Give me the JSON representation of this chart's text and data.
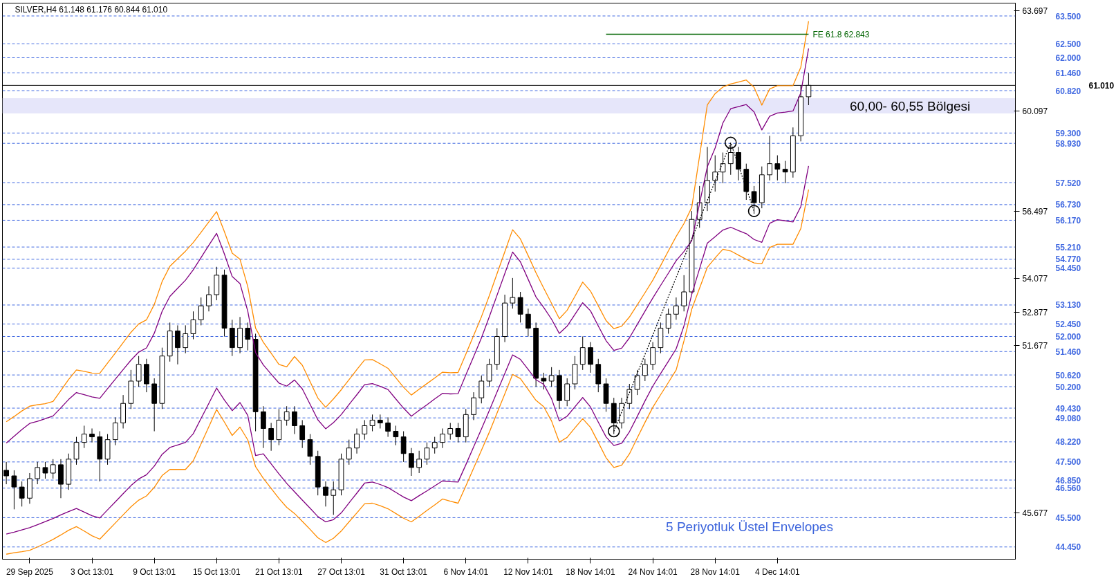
{
  "chart_data": {
    "type": "candlestick",
    "title": "SILVER,H4  61.148 61.176 60.844 61.010",
    "color": "#000000",
    "categories": [
      null,
      null,
      null,
      "29 Sep 2025",
      null,
      null,
      null,
      null,
      null,
      null,
      null,
      "3 Oct 13:01",
      null,
      null,
      null,
      null,
      null,
      null,
      null,
      "9 Oct 13:01",
      null,
      null,
      null,
      null,
      null,
      null,
      null,
      "15 Oct 13:01",
      null,
      null,
      null,
      null,
      null,
      null,
      null,
      "21 Oct 13:01",
      null,
      null,
      null,
      null,
      null,
      null,
      null,
      "27 Oct 13:01",
      null,
      null,
      null,
      null,
      null,
      null,
      null,
      "31 Oct 13:01",
      null,
      null,
      null,
      null,
      null,
      null,
      null,
      "6 Nov 14:01",
      null,
      null,
      null,
      null,
      null,
      null,
      null,
      "12 Nov 14:01",
      null,
      null,
      null,
      null,
      null,
      null,
      null,
      "18 Nov 14:01",
      null,
      null,
      null,
      null,
      null,
      null,
      null,
      "24 Nov 14:01",
      null,
      null,
      null,
      null,
      null,
      null,
      null,
      "28 Nov 14:01",
      null,
      null,
      null,
      null,
      null,
      null,
      null,
      "4 Dec 14:01",
      null,
      null,
      null,
      null
    ],
    "ohlc": [
      [
        47.2,
        47.5,
        46.7,
        47.0
      ],
      [
        47.0,
        47.2,
        45.8,
        46.6
      ],
      [
        46.6,
        46.8,
        45.9,
        46.2
      ],
      [
        46.2,
        47.1,
        46.0,
        46.9
      ],
      [
        46.9,
        47.5,
        46.7,
        47.3
      ],
      [
        47.3,
        47.5,
        46.9,
        47.1
      ],
      [
        47.1,
        47.6,
        46.9,
        47.4
      ],
      [
        47.4,
        47.6,
        46.2,
        46.7
      ],
      [
        46.7,
        47.8,
        46.5,
        47.6
      ],
      [
        47.6,
        48.4,
        47.4,
        48.2
      ],
      [
        48.2,
        48.8,
        48.0,
        48.5
      ],
      [
        48.5,
        48.7,
        48.2,
        48.4
      ],
      [
        48.4,
        48.6,
        46.8,
        47.6
      ],
      [
        47.6,
        48.5,
        47.4,
        48.3
      ],
      [
        48.3,
        49.1,
        48.1,
        48.9
      ],
      [
        48.9,
        49.9,
        48.7,
        49.6
      ],
      [
        49.6,
        50.8,
        49.4,
        50.4
      ],
      [
        50.4,
        51.3,
        50.2,
        51.0
      ],
      [
        51.0,
        51.2,
        50.0,
        50.3
      ],
      [
        50.3,
        50.5,
        48.6,
        49.6
      ],
      [
        49.6,
        51.6,
        49.4,
        51.3
      ],
      [
        51.3,
        52.5,
        51.1,
        52.2
      ],
      [
        52.2,
        52.4,
        51.0,
        51.6
      ],
      [
        51.6,
        52.4,
        51.4,
        52.1
      ],
      [
        52.1,
        52.9,
        51.9,
        52.6
      ],
      [
        52.6,
        53.4,
        52.4,
        53.1
      ],
      [
        53.1,
        53.8,
        52.9,
        53.5
      ],
      [
        53.5,
        54.5,
        53.3,
        54.2
      ],
      [
        54.2,
        54.4,
        52.0,
        52.3
      ],
      [
        52.3,
        52.6,
        51.3,
        51.6
      ],
      [
        51.6,
        52.7,
        51.4,
        52.3
      ],
      [
        52.3,
        52.5,
        51.5,
        51.9
      ],
      [
        51.9,
        52.1,
        48.6,
        49.3
      ],
      [
        49.3,
        49.5,
        48.0,
        48.7
      ],
      [
        48.7,
        48.9,
        47.9,
        48.3
      ],
      [
        48.3,
        49.4,
        48.1,
        49.0
      ],
      [
        49.0,
        49.5,
        48.8,
        49.3
      ],
      [
        49.3,
        49.5,
        48.5,
        48.8
      ],
      [
        48.8,
        49.0,
        48.0,
        48.3
      ],
      [
        48.3,
        48.5,
        47.4,
        47.7
      ],
      [
        47.7,
        47.9,
        46.3,
        46.6
      ],
      [
        46.6,
        46.8,
        45.9,
        46.3
      ],
      [
        46.3,
        46.8,
        45.6,
        46.5
      ],
      [
        46.5,
        47.8,
        46.3,
        47.6
      ],
      [
        47.6,
        48.3,
        47.4,
        48.0
      ],
      [
        48.0,
        48.7,
        47.8,
        48.5
      ],
      [
        48.5,
        49.0,
        48.3,
        48.8
      ],
      [
        48.8,
        49.2,
        48.6,
        49.0
      ],
      [
        49.0,
        49.2,
        48.7,
        48.9
      ],
      [
        48.9,
        49.1,
        48.4,
        48.6
      ],
      [
        48.6,
        48.8,
        48.1,
        48.4
      ],
      [
        48.4,
        48.6,
        47.5,
        47.8
      ],
      [
        47.8,
        48.0,
        47.0,
        47.3
      ],
      [
        47.3,
        47.9,
        47.1,
        47.6
      ],
      [
        47.6,
        48.2,
        47.4,
        48.0
      ],
      [
        48.0,
        48.4,
        47.8,
        48.2
      ],
      [
        48.2,
        48.7,
        48.0,
        48.5
      ],
      [
        48.5,
        48.9,
        48.3,
        48.7
      ],
      [
        48.7,
        48.9,
        48.2,
        48.4
      ],
      [
        48.4,
        49.4,
        48.2,
        49.2
      ],
      [
        49.2,
        50.0,
        49.0,
        49.8
      ],
      [
        49.8,
        50.6,
        49.6,
        50.4
      ],
      [
        50.4,
        51.2,
        50.2,
        51.0
      ],
      [
        51.0,
        52.3,
        50.8,
        52.0
      ],
      [
        52.0,
        53.5,
        51.8,
        53.2
      ],
      [
        53.2,
        54.1,
        53.0,
        53.4
      ],
      [
        53.4,
        53.6,
        52.5,
        52.8
      ],
      [
        52.8,
        53.0,
        52.0,
        52.3
      ],
      [
        52.3,
        52.5,
        50.2,
        50.5
      ],
      [
        50.5,
        50.7,
        50.1,
        50.4
      ],
      [
        50.4,
        50.9,
        50.2,
        50.6
      ],
      [
        50.6,
        50.8,
        49.4,
        49.7
      ],
      [
        49.7,
        50.5,
        49.5,
        50.3
      ],
      [
        50.3,
        51.3,
        50.1,
        51.0
      ],
      [
        51.0,
        52.0,
        50.8,
        51.6
      ],
      [
        51.6,
        51.8,
        50.7,
        51.0
      ],
      [
        51.0,
        51.2,
        50.0,
        50.3
      ],
      [
        50.3,
        50.5,
        49.3,
        49.6
      ],
      [
        49.6,
        49.8,
        48.5,
        48.9
      ],
      [
        48.9,
        49.8,
        48.7,
        49.6
      ],
      [
        49.6,
        50.3,
        49.4,
        50.1
      ],
      [
        50.1,
        50.8,
        49.9,
        50.6
      ],
      [
        50.6,
        51.2,
        50.4,
        51.0
      ],
      [
        51.0,
        51.8,
        50.8,
        51.6
      ],
      [
        51.6,
        52.5,
        51.4,
        52.3
      ],
      [
        52.3,
        53.0,
        52.1,
        52.8
      ],
      [
        52.8,
        53.4,
        52.6,
        53.1
      ],
      [
        53.1,
        54.2,
        52.9,
        53.6
      ],
      [
        53.6,
        56.5,
        53.5,
        56.2
      ],
      [
        56.2,
        57.4,
        55.9,
        56.8
      ],
      [
        56.8,
        58.8,
        56.5,
        57.6
      ],
      [
        57.6,
        58.5,
        57.2,
        57.9
      ],
      [
        57.9,
        58.6,
        57.5,
        58.2
      ],
      [
        58.2,
        58.9,
        57.8,
        58.6
      ],
      [
        58.6,
        58.8,
        57.6,
        58.0
      ],
      [
        58.0,
        58.2,
        56.9,
        57.2
      ],
      [
        57.2,
        57.4,
        56.4,
        56.8
      ],
      [
        56.8,
        58.1,
        56.6,
        57.8
      ],
      [
        57.8,
        59.2,
        57.6,
        58.2
      ],
      [
        58.2,
        58.5,
        57.6,
        58.0
      ],
      [
        58.0,
        58.3,
        57.5,
        57.9
      ],
      [
        57.9,
        59.5,
        57.7,
        59.2
      ],
      [
        59.2,
        61.0,
        59.0,
        60.6
      ],
      [
        60.6,
        61.45,
        60.3,
        61.01
      ]
    ],
    "series": [
      {
        "type": "line",
        "color": "#ff8c00",
        "values": [
          48.94,
          49.13,
          49.33,
          49.5,
          49.55,
          49.59,
          49.67,
          50.06,
          50.46,
          50.8,
          50.75,
          50.69,
          50.68,
          51.05,
          51.41,
          51.78,
          52.15,
          52.45,
          52.6,
          53.15,
          53.97,
          54.52,
          54.79,
          55.06,
          55.37,
          55.74,
          56.11,
          56.48,
          55.76,
          54.99,
          54.77,
          53.79,
          52.3,
          51.79,
          51.4,
          51.0,
          50.91,
          51.28,
          50.97,
          50.38,
          49.79,
          49.46,
          49.76,
          50.09,
          50.45,
          50.81,
          51.16,
          51.17,
          51.02,
          50.86,
          50.52,
          50.18,
          49.9,
          50.11,
          50.31,
          50.51,
          50.72,
          50.7,
          50.71,
          51.37,
          52.04,
          52.71,
          53.46,
          54.25,
          55.04,
          55.83,
          55.5,
          54.9,
          54.29,
          53.73,
          53.19,
          52.64,
          52.94,
          53.44,
          53.95,
          53.63,
          53.1,
          52.57,
          52.28,
          52.37,
          52.7,
          53.13,
          53.57,
          54.02,
          54.54,
          55.07,
          55.59,
          56.05,
          56.63,
          58.47,
          60.31,
          60.71,
          60.95,
          61.06,
          61.13,
          61.2,
          60.94,
          60.3,
          60.88,
          61.0,
          61.0,
          61.0,
          61.66,
          63.31
        ]
      },
      {
        "type": "line",
        "color": "#800080",
        "values": [
          48.18,
          48.42,
          48.66,
          48.88,
          48.96,
          49.05,
          49.15,
          49.44,
          49.74,
          49.99,
          49.91,
          49.83,
          49.78,
          50.13,
          50.47,
          50.81,
          51.15,
          51.44,
          51.59,
          52.12,
          52.9,
          53.44,
          53.73,
          54.02,
          54.39,
          54.83,
          55.27,
          55.7,
          54.96,
          54.15,
          53.9,
          52.91,
          51.42,
          50.98,
          50.65,
          50.33,
          50.22,
          50.44,
          50.12,
          49.57,
          49.01,
          48.69,
          48.91,
          49.2,
          49.56,
          49.91,
          50.27,
          50.31,
          50.21,
          50.1,
          49.76,
          49.43,
          49.14,
          49.35,
          49.55,
          49.76,
          49.96,
          49.94,
          49.95,
          50.62,
          51.28,
          51.95,
          52.7,
          53.48,
          54.26,
          55.03,
          54.68,
          54.05,
          53.42,
          53.04,
          52.62,
          52.11,
          52.37,
          52.79,
          53.21,
          52.92,
          52.38,
          51.85,
          51.5,
          51.58,
          51.95,
          52.43,
          52.91,
          53.38,
          53.83,
          54.27,
          54.72,
          55.05,
          55.44,
          56.77,
          58.09,
          58.76,
          59.66,
          60.17,
          60.25,
          60.32,
          60.06,
          59.41,
          59.9,
          60.02,
          60.05,
          60.09,
          60.74,
          62.33
        ]
      },
      {
        "type": "line",
        "color": "#800080",
        "values": [
          44.91,
          44.98,
          45.06,
          45.14,
          45.25,
          45.36,
          45.47,
          45.6,
          45.72,
          45.83,
          45.7,
          45.57,
          45.49,
          45.78,
          46.07,
          46.36,
          46.65,
          46.89,
          47.04,
          47.35,
          47.77,
          48.02,
          48.11,
          48.2,
          48.51,
          49.06,
          49.6,
          50.15,
          49.72,
          49.34,
          49.63,
          49.17,
          47.73,
          47.79,
          47.43,
          47.07,
          46.73,
          46.43,
          46.13,
          45.84,
          45.54,
          45.35,
          45.43,
          45.67,
          46.03,
          46.38,
          46.74,
          46.78,
          46.69,
          46.58,
          46.41,
          46.24,
          46.11,
          46.29,
          46.46,
          46.64,
          46.82,
          46.79,
          46.78,
          47.4,
          48.04,
          48.68,
          49.34,
          50.01,
          50.67,
          51.34,
          51.18,
          50.82,
          50.45,
          50.28,
          49.77,
          48.97,
          49.14,
          49.48,
          49.81,
          49.47,
          48.93,
          48.4,
          48.09,
          48.17,
          48.58,
          49.13,
          49.69,
          50.22,
          50.67,
          51.11,
          51.56,
          52.38,
          53.51,
          54.43,
          55.35,
          55.58,
          55.82,
          55.92,
          55.8,
          55.69,
          55.48,
          55.38,
          56.06,
          56.19,
          56.15,
          56.11,
          56.66,
          58.12
        ]
      },
      {
        "type": "line",
        "color": "#ff8c00",
        "values": [
          44.19,
          44.24,
          44.28,
          44.33,
          44.45,
          44.58,
          44.72,
          44.88,
          45.05,
          45.18,
          45.02,
          44.85,
          44.73,
          45.02,
          45.31,
          45.6,
          45.89,
          46.13,
          46.28,
          46.59,
          47.01,
          47.23,
          47.23,
          47.23,
          47.54,
          48.15,
          48.76,
          49.38,
          48.93,
          48.45,
          48.75,
          48.29,
          47.33,
          46.91,
          46.55,
          46.19,
          45.87,
          45.65,
          45.37,
          45.08,
          44.78,
          44.61,
          44.76,
          45.02,
          45.35,
          45.67,
          46.0,
          46.02,
          45.93,
          45.82,
          45.65,
          45.48,
          45.35,
          45.55,
          45.76,
          45.96,
          46.17,
          46.09,
          46.02,
          46.64,
          47.28,
          47.92,
          48.56,
          49.25,
          49.94,
          50.64,
          50.49,
          50.1,
          49.71,
          49.48,
          48.97,
          48.21,
          48.38,
          48.72,
          49.05,
          48.74,
          48.2,
          47.65,
          47.3,
          47.38,
          47.79,
          48.36,
          48.92,
          49.46,
          49.91,
          50.35,
          50.8,
          51.84,
          52.98,
          53.73,
          54.48,
          54.82,
          55.13,
          55.07,
          54.92,
          54.77,
          54.64,
          54.61,
          55.19,
          55.31,
          55.31,
          55.31,
          55.87,
          57.27
        ]
      },
      {
        "type": "line",
        "color": "#000000",
        "line_style": "dotted",
        "values": [
          null,
          null,
          null,
          null,
          null,
          null,
          null,
          null,
          null,
          null,
          null,
          null,
          null,
          null,
          null,
          null,
          null,
          null,
          null,
          null,
          null,
          null,
          null,
          null,
          null,
          null,
          null,
          null,
          null,
          null,
          null,
          null,
          null,
          null,
          null,
          null,
          null,
          null,
          null,
          null,
          null,
          null,
          null,
          null,
          null,
          null,
          null,
          null,
          null,
          null,
          null,
          null,
          null,
          null,
          null,
          null,
          null,
          null,
          null,
          null,
          null,
          null,
          null,
          null,
          null,
          null,
          null,
          null,
          null,
          null,
          null,
          null,
          null,
          null,
          null,
          null,
          null,
          null,
          48.6,
          49.29,
          49.98,
          50.67,
          51.36,
          52.05,
          52.74,
          53.43,
          54.12,
          54.81,
          55.5,
          56.19,
          56.88,
          57.57,
          58.26,
          58.95,
          58.13,
          57.32,
          56.5,
          null,
          null,
          null,
          null,
          null,
          null,
          null
        ]
      },
      {
        "type": "scatter",
        "color": "#000000",
        "marker": "circle",
        "values": [
          null,
          null,
          null,
          null,
          null,
          null,
          null,
          null,
          null,
          null,
          null,
          null,
          null,
          null,
          null,
          null,
          null,
          null,
          null,
          null,
          null,
          null,
          null,
          null,
          null,
          null,
          null,
          null,
          null,
          null,
          null,
          null,
          null,
          null,
          null,
          null,
          null,
          null,
          null,
          null,
          null,
          null,
          null,
          null,
          null,
          null,
          null,
          null,
          null,
          null,
          null,
          null,
          null,
          null,
          null,
          null,
          null,
          null,
          null,
          null,
          null,
          null,
          null,
          null,
          null,
          null,
          null,
          null,
          null,
          null,
          null,
          null,
          null,
          null,
          null,
          null,
          null,
          null,
          48.6,
          null,
          null,
          null,
          null,
          null,
          null,
          null,
          null,
          null,
          null,
          null,
          null,
          null,
          null,
          58.95,
          null,
          null,
          56.5,
          null,
          null,
          null,
          null,
          null,
          null,
          null
        ]
      },
      {
        "type": "line",
        "name": "FE 61.8 62.843",
        "color": "#006400",
        "values": [
          null,
          null,
          null,
          null,
          null,
          null,
          null,
          null,
          null,
          null,
          null,
          null,
          null,
          null,
          null,
          null,
          null,
          null,
          null,
          null,
          null,
          null,
          null,
          null,
          null,
          null,
          null,
          null,
          null,
          null,
          null,
          null,
          null,
          null,
          null,
          null,
          null,
          null,
          null,
          null,
          null,
          null,
          null,
          null,
          null,
          null,
          null,
          null,
          null,
          null,
          null,
          null,
          null,
          null,
          null,
          null,
          null,
          null,
          null,
          null,
          null,
          null,
          null,
          null,
          null,
          null,
          null,
          null,
          null,
          null,
          null,
          null,
          null,
          null,
          null,
          null,
          null,
          62.843,
          62.843,
          62.843,
          62.843,
          62.843,
          62.843,
          62.843,
          62.843,
          62.843,
          62.843,
          62.843,
          62.843,
          62.843,
          62.843,
          62.843,
          62.843,
          62.843,
          62.843,
          62.843,
          62.843,
          62.843,
          62.843,
          62.843,
          62.843,
          62.843,
          62.843,
          62.843
        ]
      }
    ],
    "ref_lines": [
      {
        "axis": "y",
        "value": 63.5,
        "label": "63.500",
        "color": "#4169e1",
        "line_style": "dashed"
      },
      {
        "axis": "y",
        "value": 62.5,
        "label": "62.500",
        "color": "#4169e1",
        "line_style": "dashed"
      },
      {
        "axis": "y",
        "value": 62.0,
        "label": "62.000",
        "color": "#4169e1",
        "line_style": "dashed"
      },
      {
        "axis": "y",
        "value": 61.46,
        "label": "61.460",
        "color": "#4169e1",
        "line_style": "dashed"
      },
      {
        "axis": "y",
        "value": 61.01,
        "label": "61.010",
        "color": "#000000",
        "line_style": "solid"
      },
      {
        "axis": "y",
        "value": 60.82,
        "label": "60.820",
        "color": "#4169e1",
        "line_style": "dashed"
      },
      {
        "axis": "y",
        "value": 59.3,
        "label": "59.300",
        "color": "#4169e1",
        "line_style": "dashed"
      },
      {
        "axis": "y",
        "value": 58.93,
        "label": "58.930",
        "color": "#4169e1",
        "line_style": "dashed"
      },
      {
        "axis": "y",
        "value": 57.52,
        "label": "57.520",
        "color": "#4169e1",
        "line_style": "dashed"
      },
      {
        "axis": "y",
        "value": 56.73,
        "label": "56.730",
        "color": "#4169e1",
        "line_style": "dashed"
      },
      {
        "axis": "y",
        "value": 56.17,
        "label": "56.170",
        "color": "#4169e1",
        "line_style": "dashed"
      },
      {
        "axis": "y",
        "value": 55.21,
        "label": "55.210",
        "color": "#4169e1",
        "line_style": "dashed"
      },
      {
        "axis": "y",
        "value": 54.77,
        "label": "54.770",
        "color": "#4169e1",
        "line_style": "dashed"
      },
      {
        "axis": "y",
        "value": 54.45,
        "label": "54.450",
        "color": "#4169e1",
        "line_style": "dashed"
      },
      {
        "axis": "y",
        "value": 53.13,
        "label": "53.130",
        "color": "#4169e1",
        "line_style": "dashed"
      },
      {
        "axis": "y",
        "value": 52.45,
        "label": "52.450",
        "color": "#4169e1",
        "line_style": "dashed"
      },
      {
        "axis": "y",
        "value": 52.0,
        "label": "52.000",
        "color": "#4169e1",
        "line_style": "dashed"
      },
      {
        "axis": "y",
        "value": 51.46,
        "label": "51.460",
        "color": "#4169e1",
        "line_style": "dashed"
      },
      {
        "axis": "y",
        "value": 50.62,
        "label": "50.620",
        "color": "#4169e1",
        "line_style": "dashed"
      },
      {
        "axis": "y",
        "value": 50.2,
        "label": "50.200",
        "color": "#4169e1",
        "line_style": "dashed"
      },
      {
        "axis": "y",
        "value": 49.43,
        "label": "49.430",
        "color": "#4169e1",
        "line_style": "dashed"
      },
      {
        "axis": "y",
        "value": 49.08,
        "label": "49.080",
        "color": "#4169e1",
        "line_style": "dashed"
      },
      {
        "axis": "y",
        "value": 48.22,
        "label": "48.220",
        "color": "#4169e1",
        "line_style": "dashed"
      },
      {
        "axis": "y",
        "value": 47.5,
        "label": "47.500",
        "color": "#4169e1",
        "line_style": "dashed"
      },
      {
        "axis": "y",
        "value": 46.85,
        "label": "46.850",
        "color": "#4169e1",
        "line_style": "dashed"
      },
      {
        "axis": "y",
        "value": 46.56,
        "label": "46.560",
        "color": "#4169e1",
        "line_style": "dashed"
      },
      {
        "axis": "y",
        "value": 45.5,
        "label": "45.500",
        "color": "#4169e1",
        "line_style": "dashed"
      },
      {
        "axis": "y",
        "value": 44.45,
        "label": "44.450",
        "color": "#4169e1",
        "line_style": "dashed"
      }
    ],
    "bands": [
      {
        "axis": "y",
        "from": 60.0,
        "to": 60.55,
        "label": "60,00- 60,55 Bölgesi",
        "color": "#e6e6fa"
      }
    ],
    "annotations": [
      "5 Periyotluk Üstel Envelopes"
    ],
    "ylim": [
      44.01,
      63.96
    ],
    "yticks": [
      63.697,
      60.097,
      56.497,
      54.077,
      52.877,
      51.677,
      45.677
    ]
  }
}
